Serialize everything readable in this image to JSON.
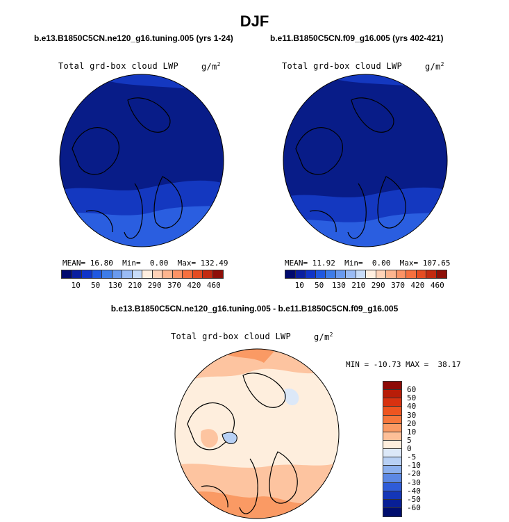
{
  "season": "DJF",
  "panels": [
    {
      "case": "b.e13.B1850C5CN.ne120_g16.tuning.005 (yrs 1-24)",
      "variable": "Total grd-box cloud LWP",
      "units": "g/m",
      "units_exp": "2",
      "stats": {
        "mean_label": "MEAN=",
        "mean": "16.80",
        "min_label": "Min=",
        "min": "0.00",
        "max_label": "Max=",
        "max": "132.49"
      }
    },
    {
      "case": "b.e11.B1850C5CN.f09_g16.005 (yrs 402-421)",
      "variable": "Total grd-box cloud LWP",
      "units": "g/m",
      "units_exp": "2",
      "stats": {
        "mean_label": "MEAN=",
        "mean": "11.92",
        "min_label": "Min=",
        "min": "0.00",
        "max_label": "Max=",
        "max": "107.65"
      }
    }
  ],
  "diff": {
    "case": "b.e13.B1850C5CN.ne120_g16.tuning.005 - b.e11.B1850C5CN.f09_g16.005",
    "variable": "Total grd-box cloud LWP",
    "units": "g/m",
    "units_exp": "2",
    "stats": {
      "min_label": "MIN =",
      "min": "-10.73",
      "max_label": "MAX =",
      "max": "38.17"
    }
  },
  "colorbar_top": {
    "labels": [
      "10",
      "50",
      "130",
      "210",
      "290",
      "370",
      "420",
      "460"
    ],
    "colors": [
      "#000a6e",
      "#0a1fa0",
      "#1034c8",
      "#2058e0",
      "#3e7ce8",
      "#6a9aee",
      "#9abbf4",
      "#c8dcf8",
      "#ffefe0",
      "#ffd3b8",
      "#fdb58f",
      "#fb9366",
      "#f5703f",
      "#e44c22",
      "#c22a10",
      "#8e0f08"
    ]
  },
  "colorbar_diff": {
    "labels": [
      "60",
      "50",
      "40",
      "30",
      "20",
      "10",
      "5",
      "0",
      "-5",
      "-10",
      "-20",
      "-30",
      "-40",
      "-50",
      "-60"
    ],
    "colors": [
      "#8e0a06",
      "#b81d08",
      "#d83210",
      "#ee5520",
      "#f6773c",
      "#fa9a64",
      "#fdbf98",
      "#feeedd",
      "#dce8f8",
      "#b8d0f4",
      "#8cb0ee",
      "#5c88e4",
      "#2f5cd8",
      "#1436b8",
      "#081f96",
      "#000e6e"
    ]
  },
  "map_colors": {
    "top_base": "#081c88",
    "top_band1": "#1438c0",
    "top_band2": "#2a5ee0",
    "diff_base": "#feeedd",
    "diff_band1": "#fdc4a0",
    "diff_band2": "#fa9a64"
  }
}
